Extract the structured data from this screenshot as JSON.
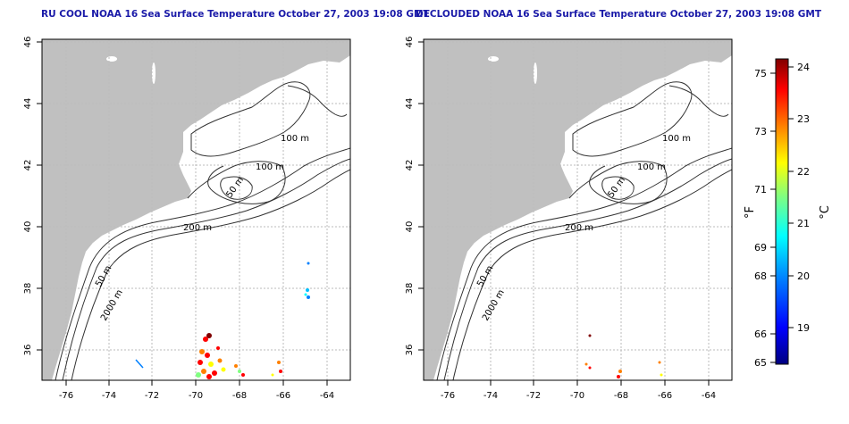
{
  "left_panel": {
    "title": "RU COOL NOAA 16 Sea Surface Temperature October 27, 2003 19:08 GMT",
    "x_ticks": [
      "-76",
      "-74",
      "-72",
      "-70",
      "-68",
      "-66",
      "-64"
    ],
    "y_ticks": [
      "46",
      "44",
      "42",
      "40",
      "38",
      "36"
    ],
    "contour_labels": [
      "100 m",
      "100 m",
      "50 m",
      "200 m",
      "50 m",
      "2000 m"
    ]
  },
  "right_panel": {
    "title": "DECLOUDED NOAA 16 Sea Surface Temperature October 27, 2003 19:08 GMT",
    "x_ticks": [
      "-76",
      "-74",
      "-72",
      "-70",
      "-68",
      "-66",
      "-64"
    ],
    "y_ticks": [
      "46",
      "44",
      "42",
      "40",
      "38",
      "36"
    ],
    "contour_labels": [
      "100 m",
      "100 m",
      "50 m",
      "200 m",
      "50 m",
      "2000 m"
    ]
  },
  "colorbar": {
    "fahrenheit_unit": "°F",
    "celsius_unit": "°C",
    "fahrenheit_ticks": [
      "75",
      "73",
      "71",
      "69",
      "68",
      "66",
      "65"
    ],
    "celsius_ticks": [
      "24",
      "23",
      "22",
      "21",
      "20",
      "19"
    ],
    "colors": [
      "#000080",
      "#0000ff",
      "#0080ff",
      "#00ffff",
      "#80ff80",
      "#ffff00",
      "#ff8000",
      "#ff0000",
      "#800000"
    ]
  },
  "colors": {
    "land": "#c0c0c0",
    "grid": "#bbbbbb",
    "contour": "#333333",
    "title": "#1a1aa8"
  }
}
